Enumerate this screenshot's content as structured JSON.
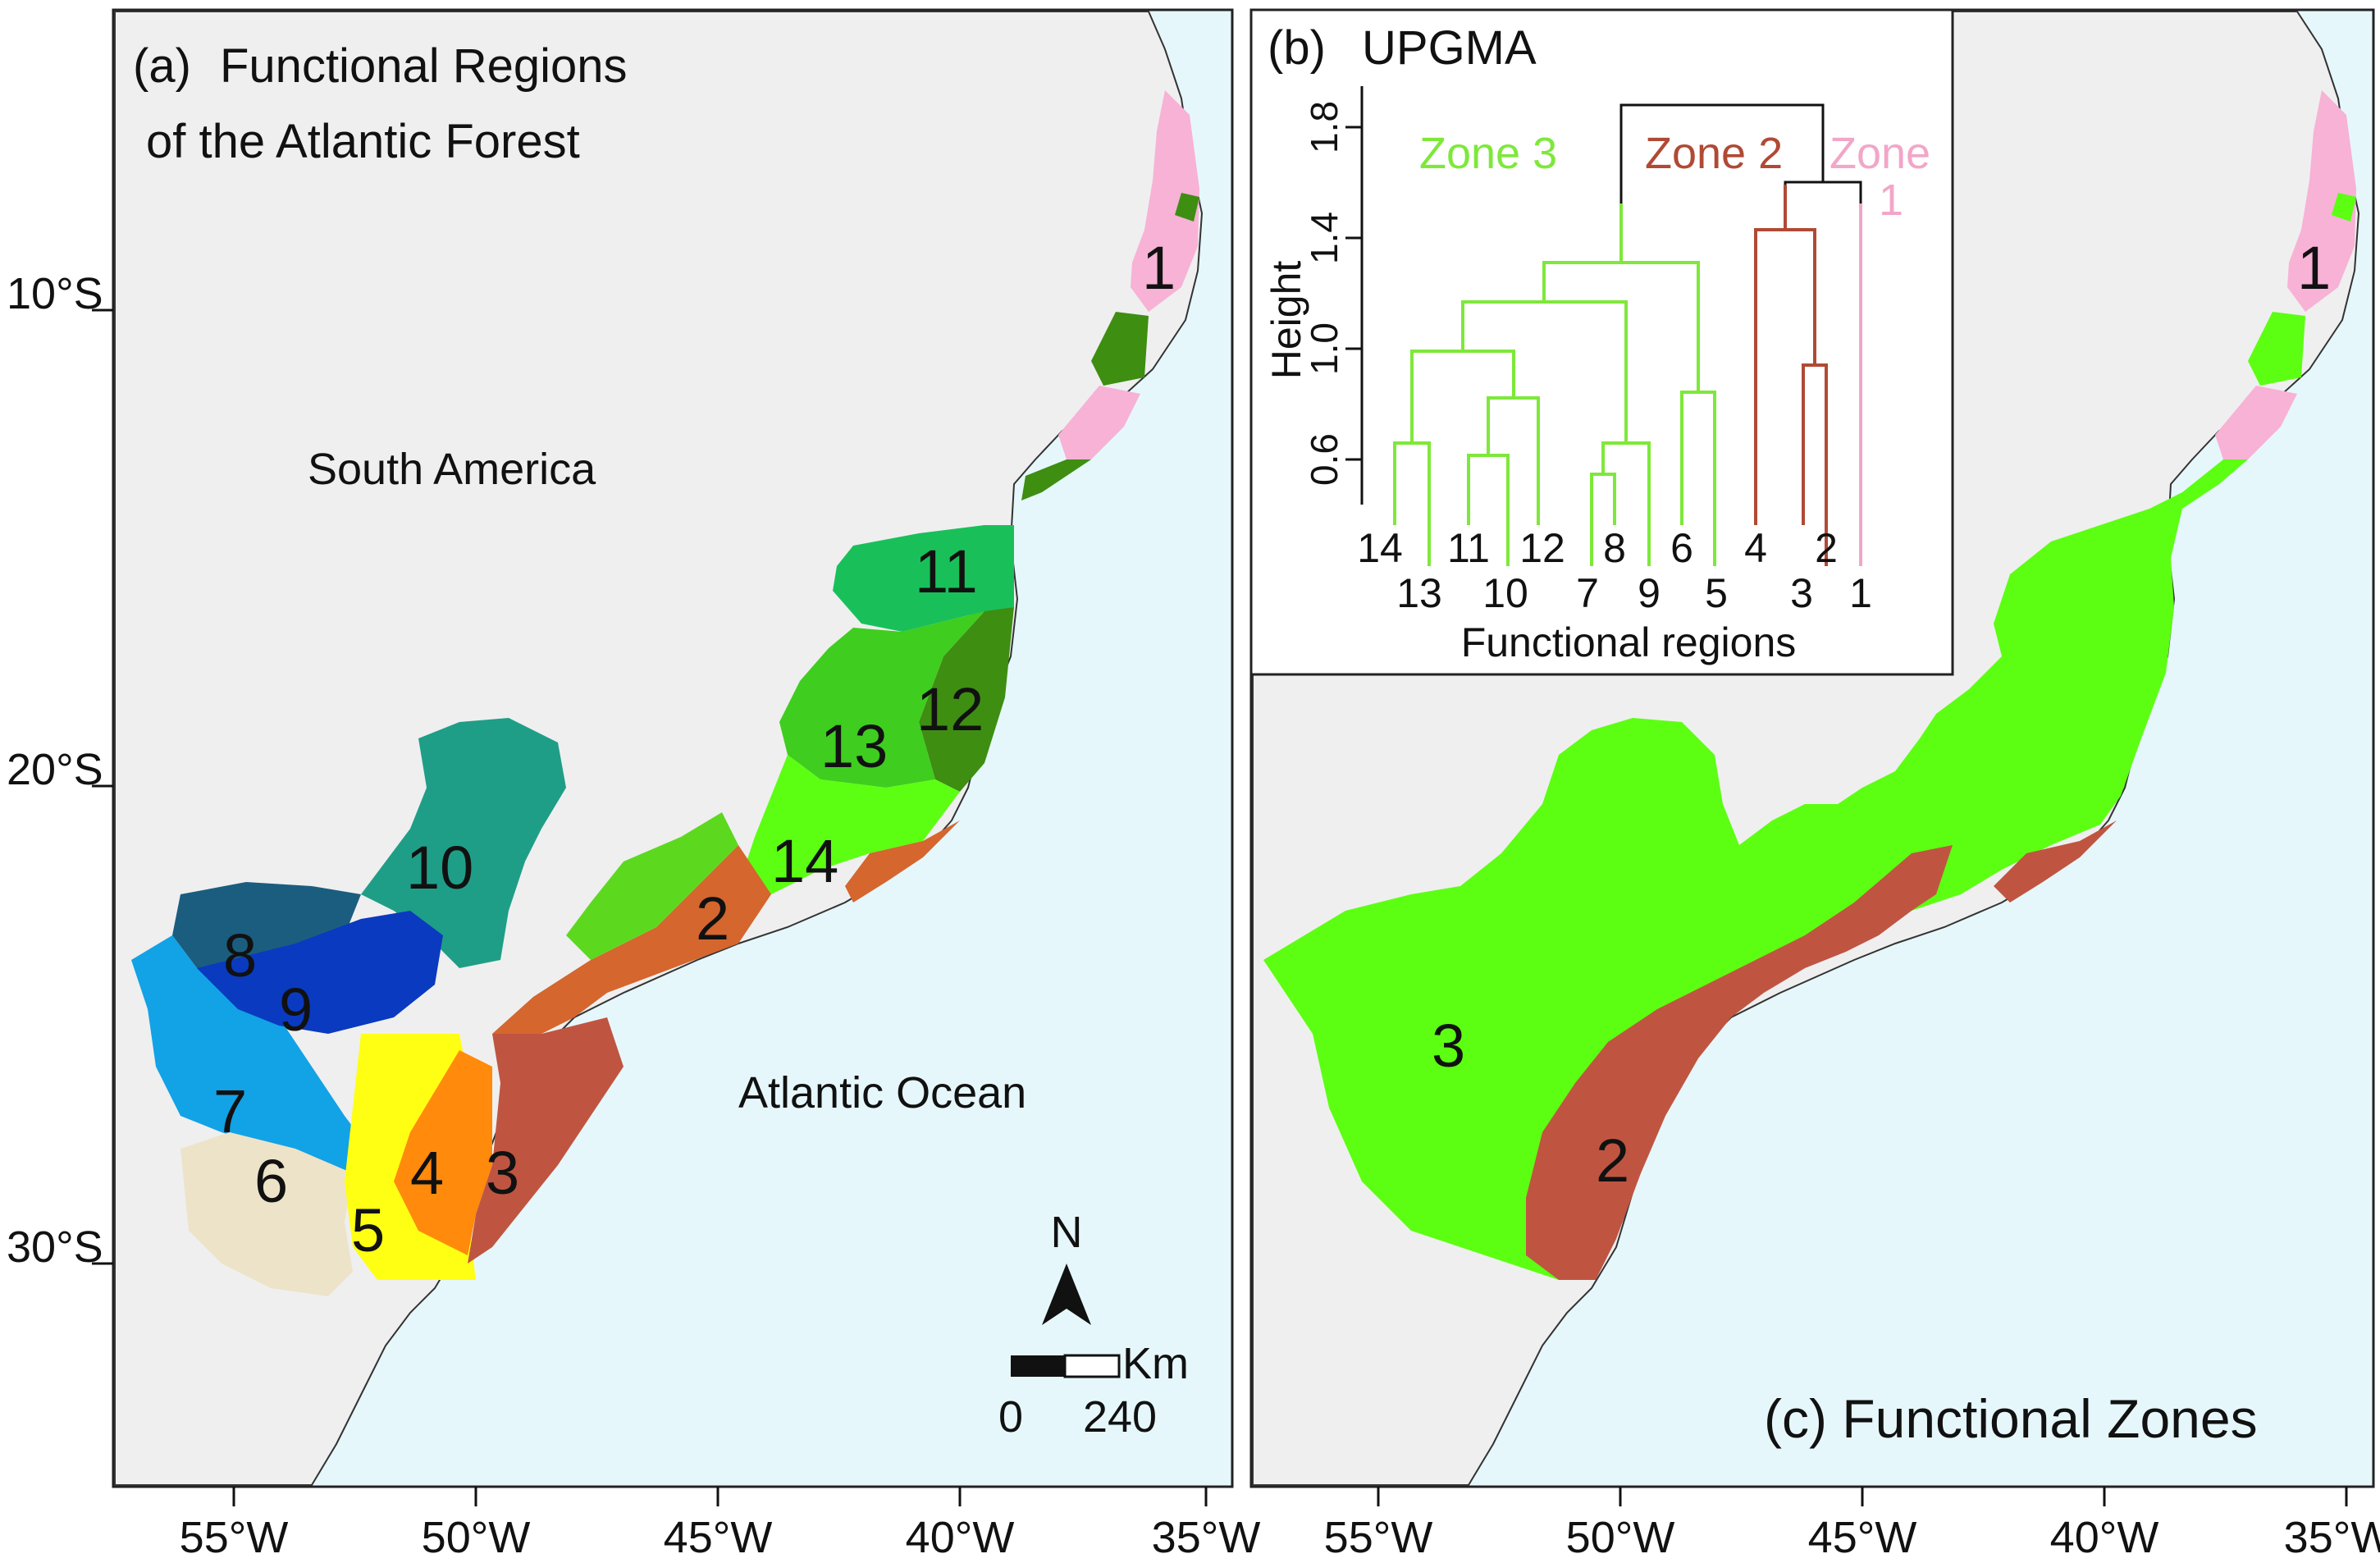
{
  "panel_a": {
    "title_letter": "(a)",
    "title_line1": "Functional Regions",
    "title_line2": "of the Atlantic Forest",
    "continent_label": "South America",
    "ocean_label": "Atlantic Ocean",
    "region_labels": [
      "1",
      "2",
      "3",
      "4",
      "5",
      "6",
      "7",
      "8",
      "9",
      "10",
      "11",
      "12",
      "13",
      "14"
    ],
    "latitude_labels": [
      "10°S",
      "20°S",
      "30°S"
    ],
    "longitude_labels": [
      "55°W",
      "50°W",
      "45°W",
      "40°W",
      "35°W"
    ],
    "north_arrow_label": "N",
    "scale_unit": "Km",
    "scale_start": "0",
    "scale_end": "240"
  },
  "panel_b": {
    "title_letter": "(b)",
    "title": "UPGMA",
    "ylabel": "Height",
    "xlabel": "Functional regions",
    "y_ticks": [
      "0.6",
      "1.0",
      "1.4",
      "1.8"
    ],
    "leaf_labels_upper": [
      "14",
      "11",
      "12",
      "8",
      "6",
      "4",
      "2"
    ],
    "leaf_labels_lower": [
      "13",
      "10",
      "7",
      "9",
      "5",
      "3",
      "1"
    ],
    "zone3_label": "Zone 3",
    "zone2_label": "Zone 2",
    "zone1_label_line1": "Zone",
    "zone1_label_line2": "1"
  },
  "panel_c": {
    "title": "(c) Functional Zones",
    "zone_labels": [
      "1",
      "2",
      "3"
    ],
    "longitude_labels": [
      "55°W",
      "50°W",
      "45°W",
      "40°W",
      "35°W"
    ]
  },
  "colors": {
    "ocean": "#e6f7fb",
    "land": "#efefef",
    "zone1": "#f7b2d6",
    "zone2": "#bf5541",
    "zone3": "#5cff12",
    "zone3_line": "#7ee83a",
    "zone2_line": "#b04a35",
    "zone1_line": "#f2a6c8"
  }
}
